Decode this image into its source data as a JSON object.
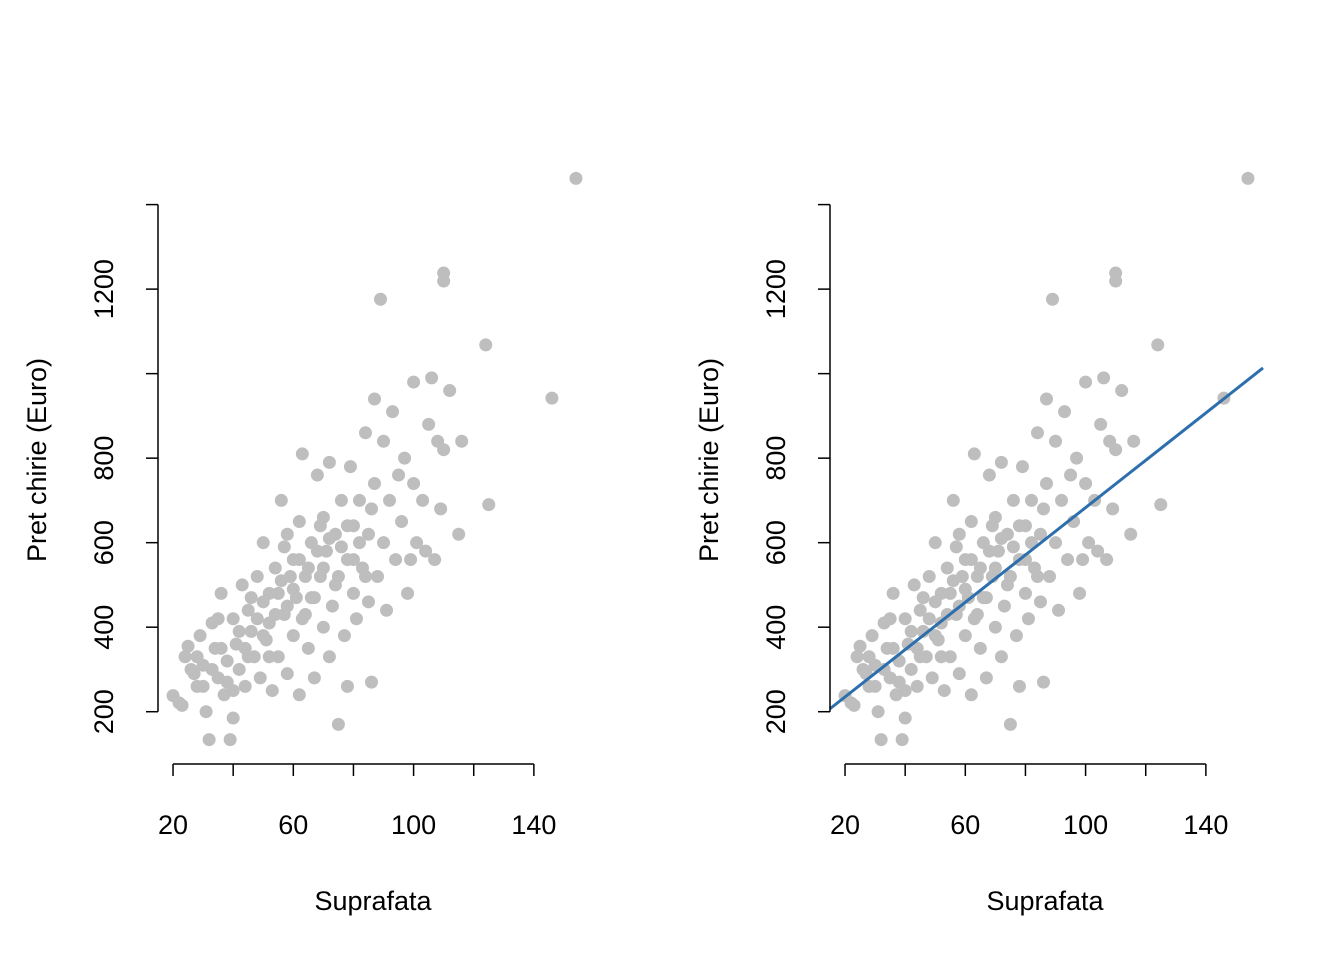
{
  "chart_data": [
    {
      "type": "scatter",
      "xlabel": "Suprafata",
      "ylabel": "Pret chirie (Euro)",
      "x_ticks": [
        20,
        40,
        60,
        80,
        100,
        120,
        140
      ],
      "x_tick_labels": [
        "20",
        "60",
        "100",
        "140"
      ],
      "y_ticks": [
        200,
        400,
        600,
        800,
        1000,
        1200,
        1400
      ],
      "y_tick_labels": [
        "200",
        "400",
        "600",
        "800",
        "1200"
      ],
      "xlim": [
        15,
        159
      ],
      "ylim": [
        81,
        1515
      ],
      "grid": false,
      "point_color": "#BEBEBE",
      "points": [
        [
          20,
          238
        ],
        [
          22,
          221
        ],
        [
          23,
          215
        ],
        [
          24,
          330
        ],
        [
          25,
          355
        ],
        [
          27,
          290
        ],
        [
          28,
          260
        ],
        [
          29,
          380
        ],
        [
          30,
          310
        ],
        [
          31,
          200
        ],
        [
          32,
          134
        ],
        [
          33,
          410
        ],
        [
          34,
          350
        ],
        [
          35,
          280
        ],
        [
          36,
          480
        ],
        [
          37,
          240
        ],
        [
          38,
          320
        ],
        [
          39,
          134
        ],
        [
          40,
          185
        ],
        [
          40,
          420
        ],
        [
          41,
          360
        ],
        [
          42,
          300
        ],
        [
          43,
          500
        ],
        [
          44,
          260
        ],
        [
          45,
          440
        ],
        [
          46,
          390
        ],
        [
          47,
          330
        ],
        [
          48,
          520
        ],
        [
          49,
          280
        ],
        [
          50,
          460
        ],
        [
          50,
          600
        ],
        [
          51,
          370
        ],
        [
          52,
          410
        ],
        [
          53,
          250
        ],
        [
          54,
          540
        ],
        [
          55,
          480
        ],
        [
          55,
          330
        ],
        [
          56,
          700
        ],
        [
          57,
          430
        ],
        [
          58,
          620
        ],
        [
          58,
          290
        ],
        [
          59,
          520
        ],
        [
          60,
          380
        ],
        [
          60,
          560
        ],
        [
          61,
          470
        ],
        [
          62,
          240
        ],
        [
          62,
          650
        ],
        [
          63,
          810
        ],
        [
          64,
          430
        ],
        [
          65,
          540
        ],
        [
          65,
          350
        ],
        [
          66,
          600
        ],
        [
          67,
          280
        ],
        [
          67,
          470
        ],
        [
          68,
          760
        ],
        [
          69,
          520
        ],
        [
          70,
          400
        ],
        [
          70,
          660
        ],
        [
          71,
          580
        ],
        [
          72,
          330
        ],
        [
          72,
          790
        ],
        [
          73,
          450
        ],
        [
          74,
          620
        ],
        [
          75,
          170
        ],
        [
          75,
          520
        ],
        [
          76,
          700
        ],
        [
          77,
          380
        ],
        [
          78,
          560
        ],
        [
          78,
          260
        ],
        [
          79,
          780
        ],
        [
          80,
          480
        ],
        [
          80,
          640
        ],
        [
          81,
          420
        ],
        [
          82,
          700
        ],
        [
          83,
          540
        ],
        [
          84,
          860
        ],
        [
          85,
          460
        ],
        [
          85,
          620
        ],
        [
          86,
          270
        ],
        [
          87,
          940
        ],
        [
          87,
          740
        ],
        [
          88,
          520
        ],
        [
          89,
          1176
        ],
        [
          90,
          600
        ],
        [
          90,
          840
        ],
        [
          91,
          440
        ],
        [
          92,
          700
        ],
        [
          93,
          910
        ],
        [
          94,
          560
        ],
        [
          95,
          760
        ],
        [
          96,
          650
        ],
        [
          97,
          800
        ],
        [
          98,
          480
        ],
        [
          99,
          560
        ],
        [
          100,
          980
        ],
        [
          100,
          740
        ],
        [
          101,
          600
        ],
        [
          103,
          700
        ],
        [
          104,
          580
        ],
        [
          105,
          880
        ],
        [
          106,
          990
        ],
        [
          107,
          560
        ],
        [
          108,
          840
        ],
        [
          109,
          680
        ],
        [
          110,
          1219
        ],
        [
          110,
          1238
        ],
        [
          110,
          820
        ],
        [
          112,
          960
        ],
        [
          115,
          620
        ],
        [
          116,
          840
        ],
        [
          124,
          1068
        ],
        [
          125,
          690
        ],
        [
          146,
          942
        ],
        [
          154,
          1462
        ],
        [
          30,
          260
        ],
        [
          33,
          300
        ],
        [
          36,
          350
        ],
        [
          38,
          270
        ],
        [
          42,
          390
        ],
        [
          45,
          330
        ],
        [
          48,
          420
        ],
        [
          50,
          380
        ],
        [
          52,
          480
        ],
        [
          54,
          430
        ],
        [
          56,
          510
        ],
        [
          58,
          450
        ],
        [
          60,
          490
        ],
        [
          62,
          560
        ],
        [
          64,
          520
        ],
        [
          66,
          470
        ],
        [
          68,
          580
        ],
        [
          70,
          540
        ],
        [
          72,
          610
        ],
        [
          74,
          500
        ],
        [
          76,
          590
        ],
        [
          78,
          640
        ],
        [
          80,
          560
        ],
        [
          82,
          600
        ],
        [
          84,
          520
        ],
        [
          86,
          680
        ],
        [
          44,
          350
        ],
        [
          46,
          470
        ],
        [
          52,
          330
        ],
        [
          57,
          590
        ],
        [
          63,
          420
        ],
        [
          69,
          640
        ],
        [
          35,
          420
        ],
        [
          28,
          330
        ],
        [
          26,
          300
        ],
        [
          40,
          250
        ]
      ]
    },
    {
      "type": "scatter",
      "xlabel": "Suprafata",
      "ylabel": "Pret chirie (Euro)",
      "x_ticks": [
        20,
        40,
        60,
        80,
        100,
        120,
        140
      ],
      "x_tick_labels": [
        "20",
        "60",
        "100",
        "140"
      ],
      "y_ticks": [
        200,
        400,
        600,
        800,
        1000,
        1200,
        1400
      ],
      "y_tick_labels": [
        "200",
        "400",
        "600",
        "800",
        "1200"
      ],
      "xlim": [
        15,
        159
      ],
      "ylim": [
        81,
        1515
      ],
      "grid": false,
      "point_color": "#BEBEBE",
      "regression_line": {
        "intercept": 123,
        "slope": 5.6,
        "color": "#2C6FAC"
      }
    }
  ]
}
